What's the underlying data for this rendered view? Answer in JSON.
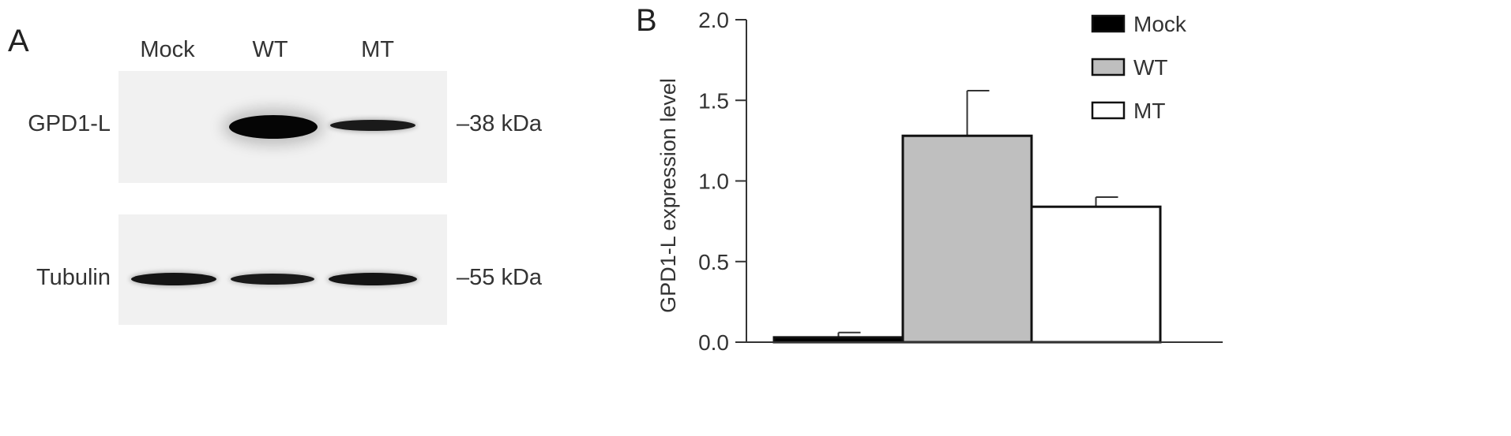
{
  "panel_a": {
    "letter": "A",
    "lanes": [
      "Mock",
      "WT",
      "MT"
    ],
    "rows": [
      {
        "label": "GPD1-L",
        "mw": "–38 kDa",
        "band_intensity": [
          0,
          1.0,
          0.55
        ]
      },
      {
        "label": "Tubulin",
        "mw": "–55 kDa",
        "band_intensity": [
          0.85,
          0.8,
          0.85
        ]
      }
    ]
  },
  "panel_b": {
    "letter": "B"
  },
  "chart_data": {
    "type": "bar",
    "categories": [
      "Mock",
      "WT",
      "MT"
    ],
    "values": [
      0.03,
      1.28,
      0.84
    ],
    "errors": [
      0.03,
      0.28,
      0.06
    ],
    "colors": [
      "#000000",
      "#bfbfbf",
      "#ffffff"
    ],
    "ylabel": "GPD1-L expression level",
    "xlabel": "",
    "ylim": [
      0,
      2.0
    ],
    "yticks": [
      "0.0",
      "0.5",
      "1.0",
      "1.5",
      "2.0"
    ],
    "legend": {
      "position": "top-right",
      "entries": [
        "Mock",
        "WT",
        "MT"
      ]
    },
    "grid": false
  }
}
